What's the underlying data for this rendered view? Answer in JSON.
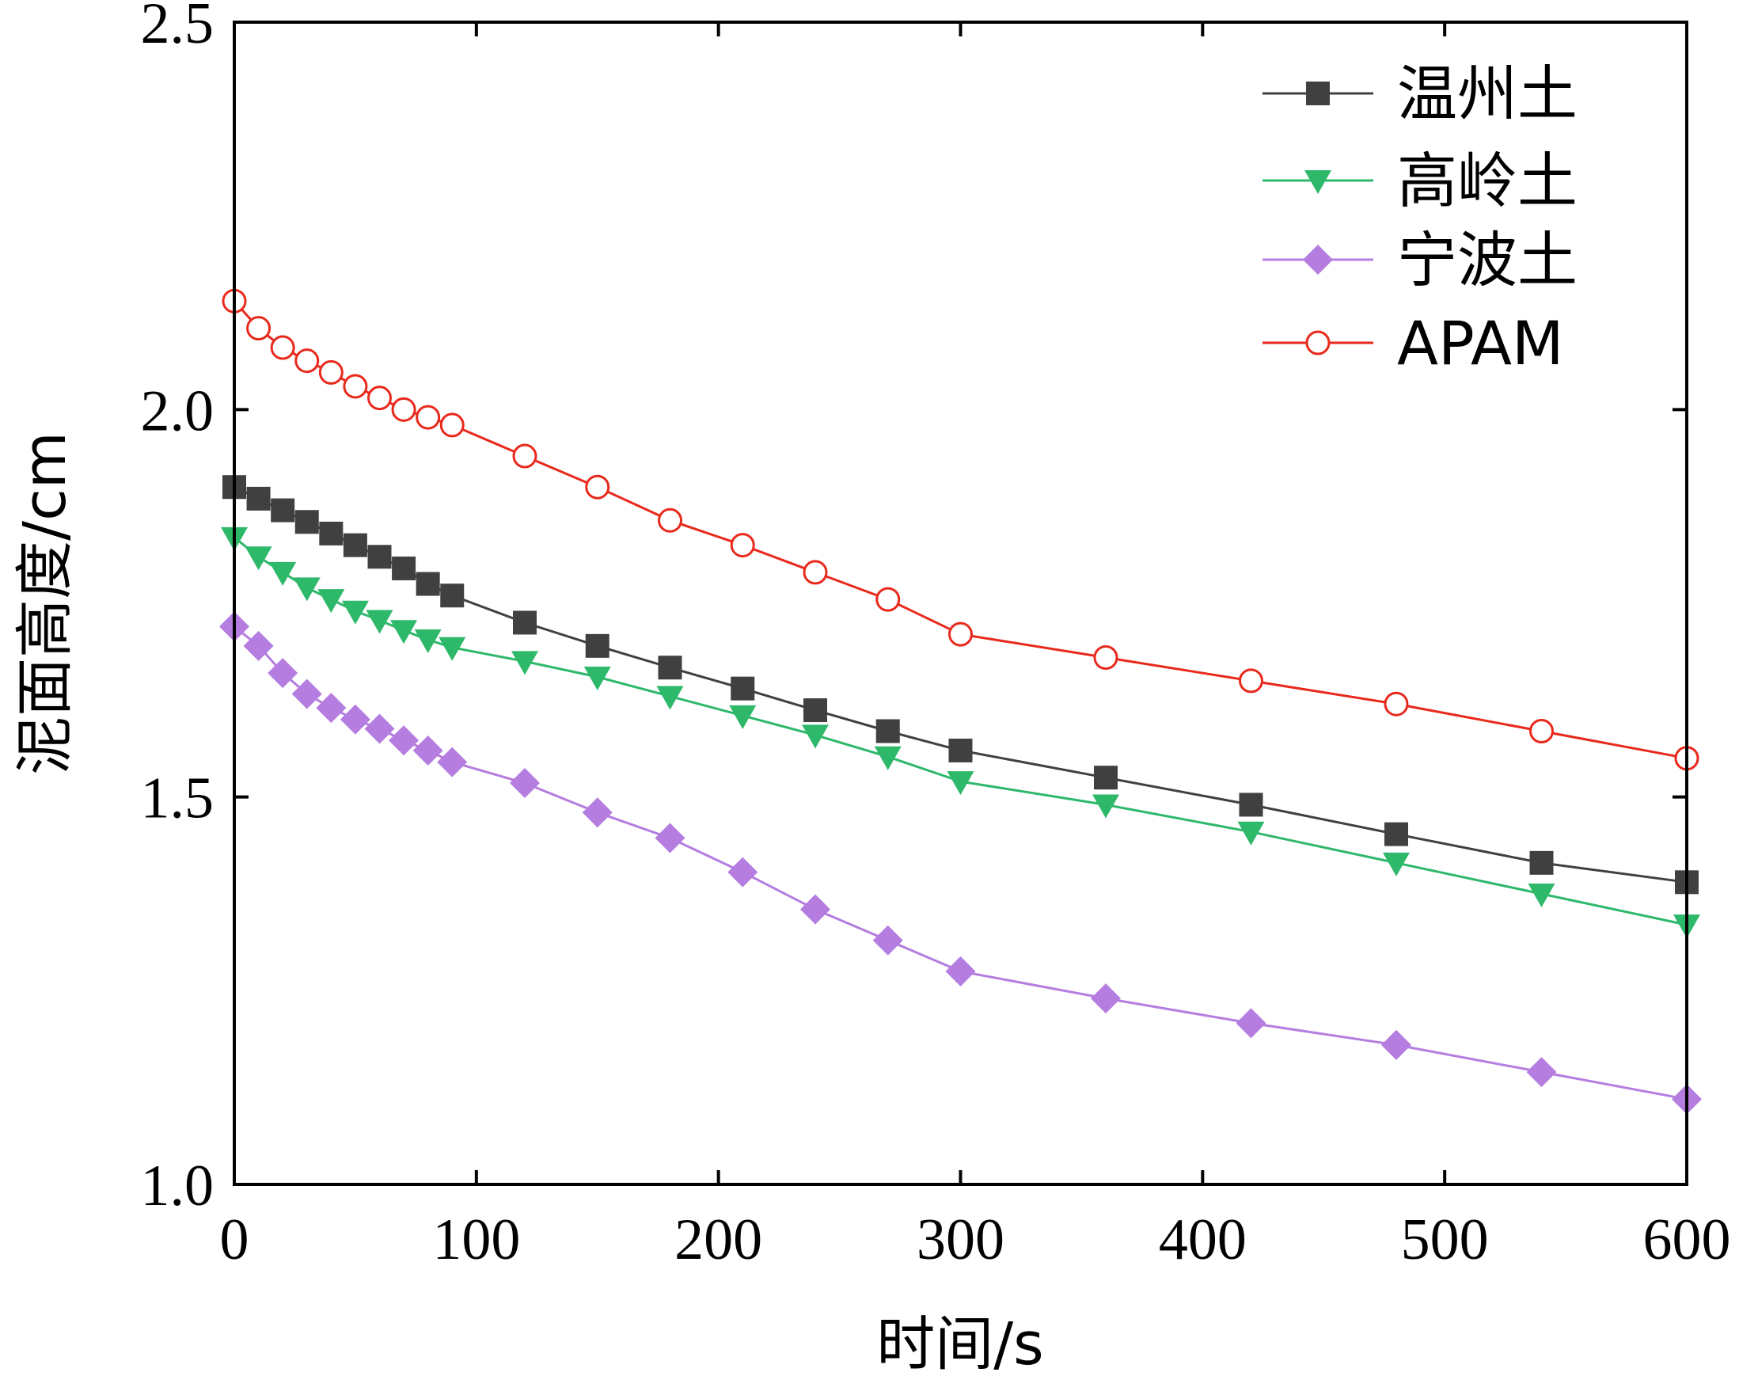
{
  "chart_data": {
    "type": "line",
    "title": "",
    "xlabel": "时间/s",
    "ylabel": "泥面高度/cm",
    "xlim": [
      0,
      600
    ],
    "ylim": [
      1.0,
      2.5
    ],
    "xticks": [
      0,
      100,
      200,
      300,
      400,
      500,
      600
    ],
    "xtick_labels": [
      "0",
      "100",
      "200",
      "300",
      "400",
      "500",
      "600"
    ],
    "yticks": [
      1.0,
      1.5,
      2.0,
      2.5
    ],
    "ytick_labels": [
      "1.0",
      "1.5",
      "2.0",
      "2.5"
    ],
    "grid": false,
    "legend_position": "top-right",
    "x": [
      0,
      10,
      20,
      30,
      40,
      50,
      60,
      70,
      80,
      90,
      120,
      150,
      180,
      210,
      240,
      270,
      300,
      360,
      420,
      480,
      540,
      600
    ],
    "series": [
      {
        "name": "温州土",
        "color": "#404040",
        "marker": "square",
        "values": [
          1.9,
          1.885,
          1.87,
          1.855,
          1.84,
          1.825,
          1.81,
          1.795,
          1.775,
          1.76,
          1.725,
          1.695,
          1.667,
          1.64,
          1.612,
          1.585,
          1.56,
          1.525,
          1.49,
          1.452,
          1.415,
          1.39
        ]
      },
      {
        "name": "高岭土",
        "color": "#2db86a",
        "marker": "triangle-down",
        "values": [
          1.835,
          1.81,
          1.79,
          1.77,
          1.755,
          1.74,
          1.728,
          1.715,
          1.703,
          1.693,
          1.675,
          1.655,
          1.63,
          1.605,
          1.58,
          1.552,
          1.52,
          1.49,
          1.455,
          1.415,
          1.375,
          1.335
        ]
      },
      {
        "name": "宁波土",
        "color": "#b57de0",
        "marker": "diamond",
        "values": [
          1.72,
          1.695,
          1.66,
          1.633,
          1.615,
          1.6,
          1.588,
          1.573,
          1.56,
          1.545,
          1.518,
          1.48,
          1.447,
          1.403,
          1.355,
          1.315,
          1.275,
          1.24,
          1.208,
          1.18,
          1.145,
          1.11
        ]
      },
      {
        "name": "APAM",
        "color": "#e8291c",
        "marker": "circle-open",
        "values": [
          2.14,
          2.105,
          2.08,
          2.063,
          2.048,
          2.03,
          2.015,
          2.0,
          1.99,
          1.98,
          1.94,
          1.9,
          1.857,
          1.825,
          1.79,
          1.755,
          1.71,
          1.68,
          1.65,
          1.62,
          1.585,
          1.55
        ]
      }
    ]
  }
}
